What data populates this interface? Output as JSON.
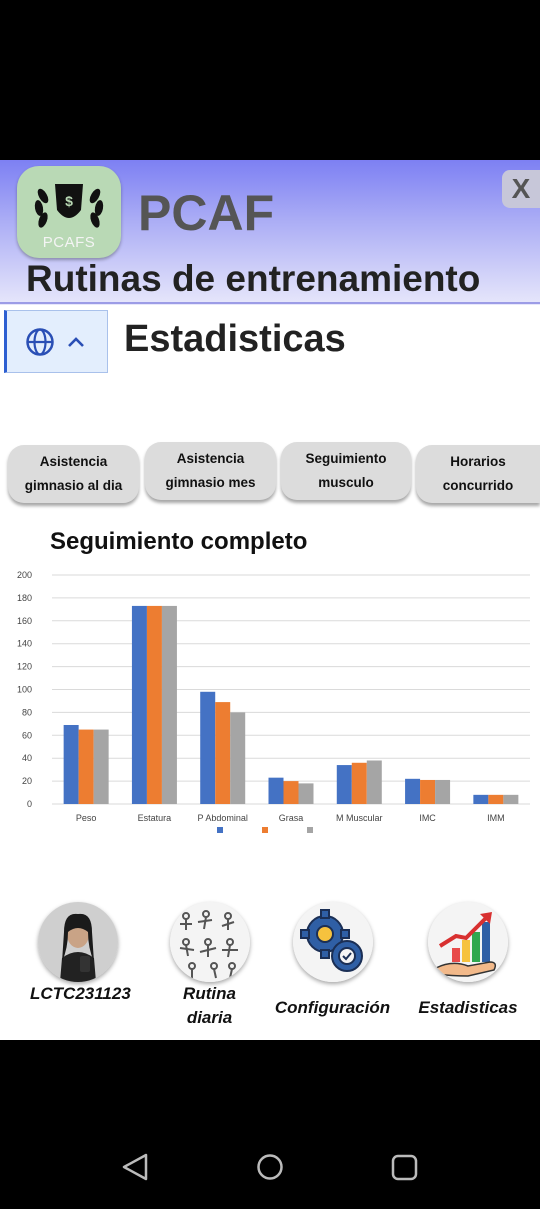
{
  "header": {
    "logo_text": "PCAFS",
    "brand": "PCAF",
    "close_label": "X",
    "subtitle": "Rutinas de entrenamiento"
  },
  "language": {
    "icon": "globe-icon",
    "caret": "chevron-up-icon"
  },
  "section_title": "Estadisticas",
  "tabs": [
    {
      "line1": "Asistencia",
      "line2": "gimnasio al dia"
    },
    {
      "line1": "Asistencia",
      "line2": "gimnasio mes"
    },
    {
      "line1": "Seguimiento",
      "line2": "musculo"
    },
    {
      "line1": "Horarios",
      "line2": "concurrido"
    }
  ],
  "chart_title": "Seguimiento completo",
  "chart_data": {
    "type": "bar",
    "categories": [
      "Peso",
      "Estatura",
      "P Abdominal",
      "Grasa",
      "M Muscular",
      "IMC",
      "IMM"
    ],
    "series": [
      {
        "name": "",
        "color": "#4472c4",
        "values": [
          69,
          173,
          98,
          23,
          34,
          22,
          8
        ]
      },
      {
        "name": "",
        "color": "#ed7d31",
        "values": [
          65,
          173,
          89,
          20,
          36,
          21,
          8
        ]
      },
      {
        "name": "",
        "color": "#a5a5a5",
        "values": [
          65,
          173,
          80,
          18,
          38,
          21,
          8
        ]
      }
    ],
    "ylim": [
      0,
      200
    ],
    "yticks": [
      0,
      20,
      40,
      60,
      80,
      100,
      120,
      140,
      160,
      180,
      200
    ],
    "grid": true,
    "legend": "bottom"
  },
  "bottom_nav": [
    {
      "label1": "LCTC231123",
      "label2": "",
      "icon": "user-avatar"
    },
    {
      "label1": "Rutina",
      "label2": "diaria",
      "icon": "exercise-chart-icon"
    },
    {
      "label1": "Configuración",
      "label2": "",
      "icon": "gears-icon"
    },
    {
      "label1": "Estadisticas",
      "label2": "",
      "icon": "growth-chart-icon"
    }
  ]
}
